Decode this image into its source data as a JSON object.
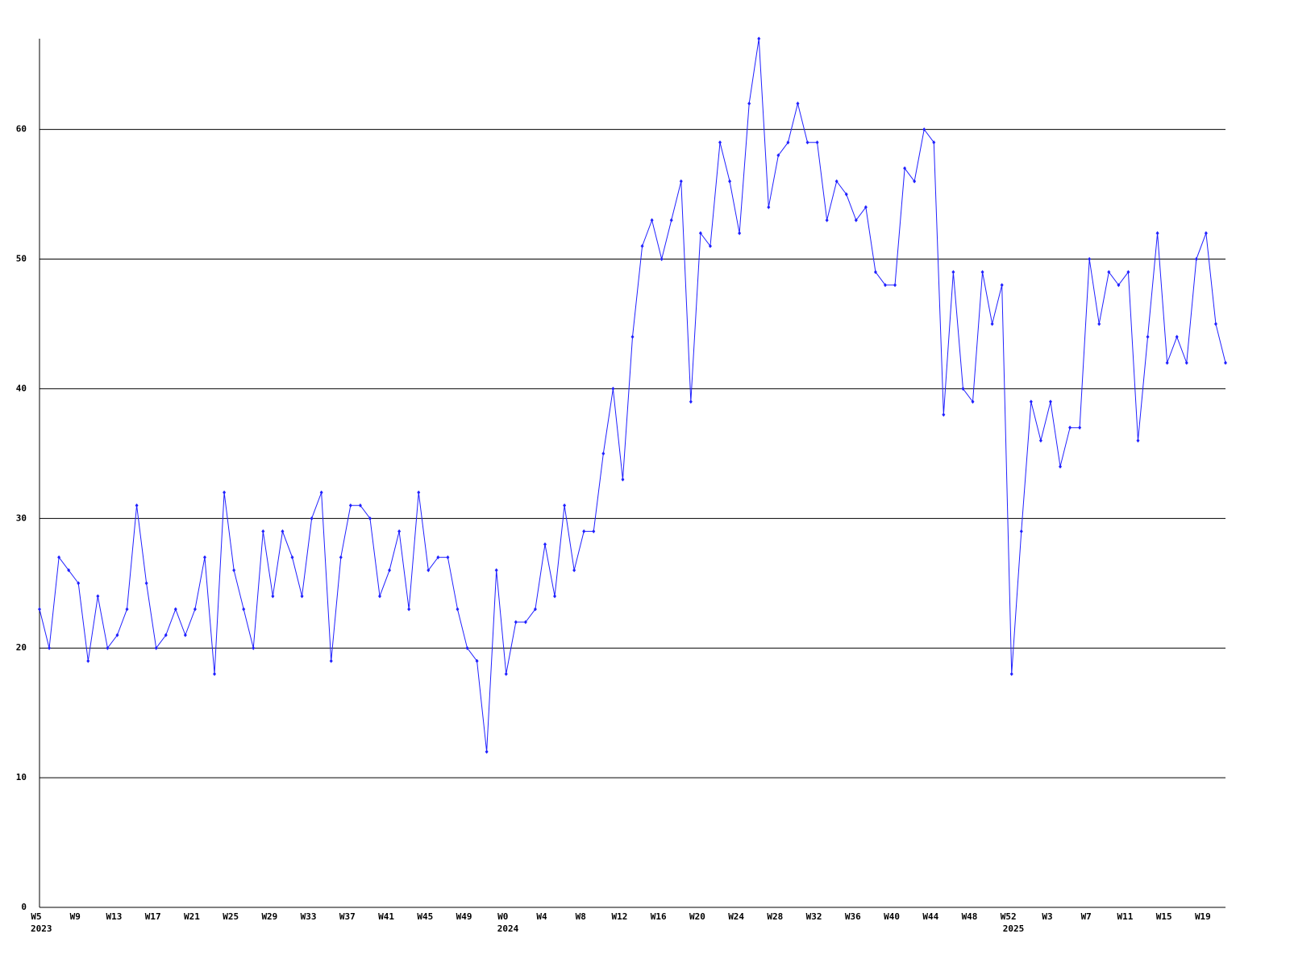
{
  "chart_data": {
    "type": "line",
    "categories": [
      "W5",
      null,
      null,
      null,
      "W9",
      null,
      null,
      null,
      "W13",
      null,
      null,
      null,
      "W17",
      null,
      null,
      null,
      "W21",
      null,
      null,
      null,
      "W25",
      null,
      null,
      null,
      "W29",
      null,
      null,
      null,
      "W33",
      null,
      null,
      null,
      "W37",
      null,
      null,
      null,
      "W41",
      null,
      null,
      null,
      "W45",
      null,
      null,
      null,
      "W49",
      null,
      null,
      null,
      "W0",
      null,
      null,
      null,
      "W4",
      null,
      null,
      null,
      "W8",
      null,
      null,
      null,
      "W12",
      null,
      null,
      null,
      "W16",
      null,
      null,
      null,
      "W20",
      null,
      null,
      null,
      "W24",
      null,
      null,
      null,
      "W28",
      null,
      null,
      null,
      "W32",
      null,
      null,
      null,
      "W36",
      null,
      null,
      null,
      "W40",
      null,
      null,
      null,
      "W44",
      null,
      null,
      null,
      "W48",
      null,
      null,
      null,
      "W52",
      null,
      null,
      null,
      "W3",
      null,
      null,
      null,
      "W7",
      null,
      null,
      null,
      "W11",
      null,
      null,
      null,
      "W15",
      null,
      null,
      null,
      "W19",
      null,
      null
    ],
    "years": [
      "2023",
      null,
      null,
      null,
      null,
      null,
      null,
      null,
      null,
      null,
      null,
      null,
      null,
      null,
      null,
      null,
      null,
      null,
      null,
      null,
      null,
      null,
      null,
      null,
      null,
      null,
      null,
      null,
      null,
      null,
      null,
      null,
      null,
      null,
      null,
      null,
      null,
      null,
      null,
      null,
      null,
      null,
      null,
      null,
      null,
      null,
      null,
      null,
      "2024",
      null,
      null,
      null,
      null,
      null,
      null,
      null,
      null,
      null,
      null,
      null,
      null,
      null,
      null,
      null,
      null,
      null,
      null,
      null,
      null,
      null,
      null,
      null,
      null,
      null,
      null,
      null,
      null,
      null,
      null,
      null,
      null,
      null,
      null,
      null,
      null,
      null,
      null,
      null,
      null,
      null,
      null,
      null,
      null,
      null,
      null,
      null,
      null,
      null,
      null,
      null,
      "2025",
      null,
      null,
      null,
      null,
      null,
      null,
      null,
      null,
      null,
      null,
      null,
      null,
      null,
      null,
      null,
      null,
      null,
      null,
      null,
      null,
      null,
      null
    ],
    "series": [
      {
        "color": "#2020ff",
        "values": [
          23,
          20,
          27,
          26,
          25,
          19,
          24,
          20,
          21,
          23,
          31,
          25,
          20,
          21,
          23,
          21,
          23,
          27,
          18,
          32,
          26,
          23,
          20,
          29,
          24,
          29,
          27,
          24,
          30,
          32,
          19,
          27,
          31,
          31,
          30,
          24,
          26,
          29,
          23,
          32,
          26,
          27,
          27,
          23,
          20,
          19,
          12,
          26,
          18,
          22,
          22,
          23,
          28,
          24,
          31,
          26,
          29,
          29,
          35,
          40,
          33,
          44,
          51,
          53,
          50,
          53,
          56,
          39,
          52,
          51,
          59,
          56,
          52,
          62,
          67,
          54,
          58,
          59,
          62,
          59,
          59,
          53,
          56,
          55,
          53,
          54,
          49,
          48,
          48,
          57,
          56,
          60,
          59,
          38,
          49,
          40,
          39,
          49,
          45,
          48,
          18,
          29,
          39,
          36,
          39,
          34,
          37,
          37,
          50,
          45,
          49,
          48,
          49,
          36,
          44,
          52,
          42,
          44,
          42,
          50,
          52,
          45,
          42
        ]
      }
    ],
    "ylim": [
      0,
      67
    ],
    "yticks": [
      0,
      10,
      20,
      30,
      40,
      50,
      60
    ],
    "grid": true
  }
}
